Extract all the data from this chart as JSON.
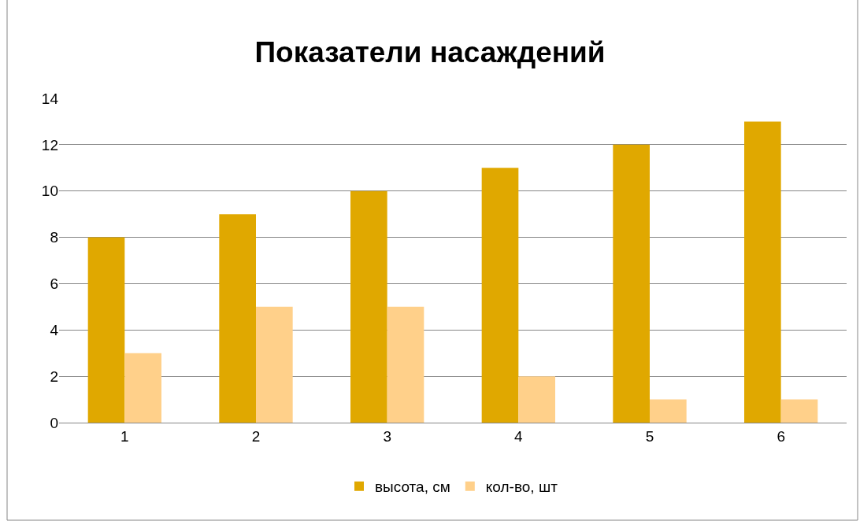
{
  "chart_data": {
    "type": "bar",
    "title": "Показатели насаждений",
    "categories": [
      "1",
      "2",
      "3",
      "4",
      "5",
      "6"
    ],
    "series": [
      {
        "name": "высота, см",
        "color": "#e0a800",
        "values": [
          8,
          9,
          10,
          11,
          12,
          13
        ]
      },
      {
        "name": "кол-во, шт",
        "color": "#ffd08a",
        "values": [
          3,
          5,
          5,
          2,
          1,
          1
        ]
      }
    ],
    "ylim": [
      0,
      14
    ],
    "yticks": [
      0,
      2,
      4,
      6,
      8,
      10,
      12,
      14
    ],
    "grid": "y",
    "legend": "bottom"
  }
}
